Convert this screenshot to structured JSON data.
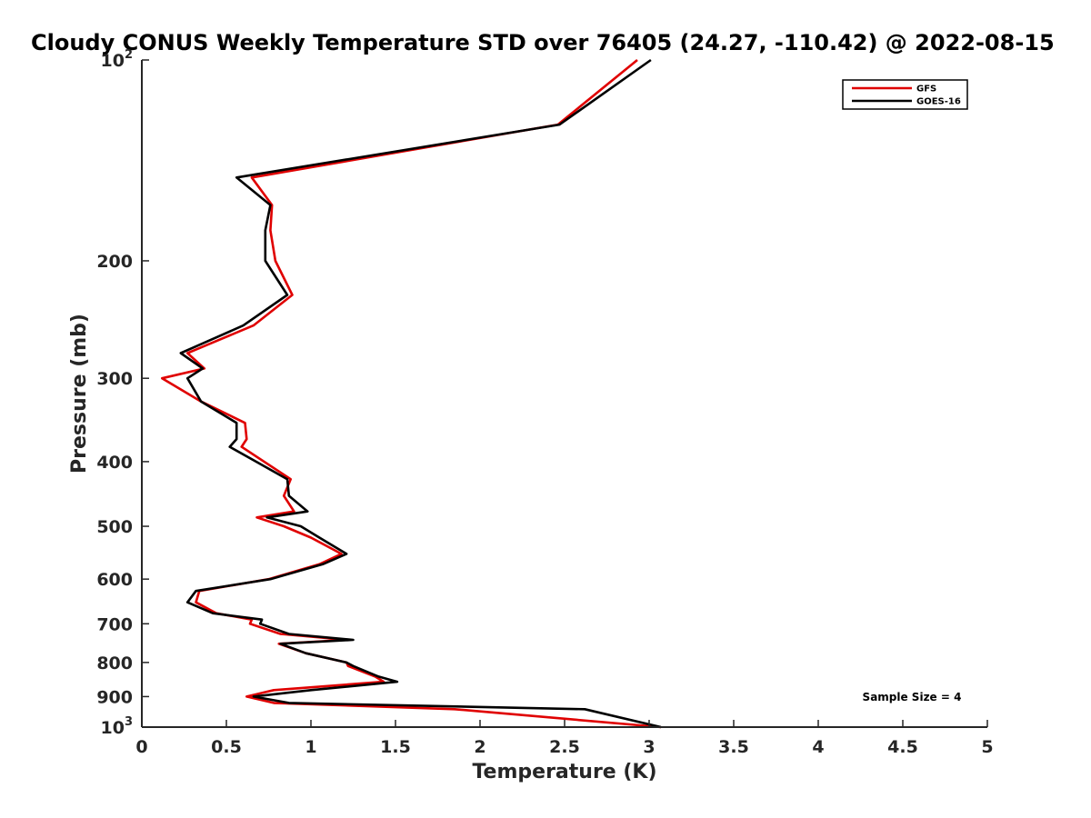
{
  "chart_data": {
    "type": "line",
    "title": "Cloudy CONUS Weekly Temperature STD over 76405 (24.27, -110.42) @ 2022-08-15",
    "xlabel": "Temperature (K)",
    "ylabel": "Pressure (mb)",
    "xlim": [
      0,
      5
    ],
    "ylim": [
      100,
      1000
    ],
    "y_scale": "log",
    "y_reversed": true,
    "grid": false,
    "legend_position": "top-right",
    "annotation": "Sample Size = 4",
    "x_ticks": [
      "0",
      "0.5",
      "1",
      "1.5",
      "2",
      "2.5",
      "3",
      "3.5",
      "4",
      "4.5",
      "5"
    ],
    "y_ticks": [
      {
        "value": 100,
        "base": "10",
        "exp": "2"
      },
      {
        "value": 200,
        "label": "200"
      },
      {
        "value": 300,
        "label": "300"
      },
      {
        "value": 400,
        "label": "400"
      },
      {
        "value": 500,
        "label": "500"
      },
      {
        "value": 600,
        "label": "600"
      },
      {
        "value": 700,
        "label": "700"
      },
      {
        "value": 800,
        "label": "800"
      },
      {
        "value": 900,
        "label": "900"
      },
      {
        "value": 1000,
        "base": "10",
        "exp": "3"
      }
    ],
    "series": [
      {
        "name": "GFS",
        "color": "#e00000",
        "points": [
          [
            2.93,
            100
          ],
          [
            2.46,
            125
          ],
          [
            0.65,
            150
          ],
          [
            0.77,
            165
          ],
          [
            0.76,
            180
          ],
          [
            0.79,
            200
          ],
          [
            0.89,
            225
          ],
          [
            0.66,
            250
          ],
          [
            0.27,
            275
          ],
          [
            0.37,
            290
          ],
          [
            0.12,
            300
          ],
          [
            0.35,
            325
          ],
          [
            0.61,
            350
          ],
          [
            0.62,
            370
          ],
          [
            0.59,
            380
          ],
          [
            0.88,
            425
          ],
          [
            0.84,
            450
          ],
          [
            0.9,
            475
          ],
          [
            0.68,
            485
          ],
          [
            0.84,
            500
          ],
          [
            1.0,
            520
          ],
          [
            1.18,
            550
          ],
          [
            1.05,
            570
          ],
          [
            0.75,
            600
          ],
          [
            0.34,
            625
          ],
          [
            0.32,
            650
          ],
          [
            0.44,
            675
          ],
          [
            0.65,
            690
          ],
          [
            0.64,
            700
          ],
          [
            0.82,
            725
          ],
          [
            1.21,
            740
          ],
          [
            0.81,
            750
          ],
          [
            0.97,
            775
          ],
          [
            1.21,
            800
          ],
          [
            1.22,
            810
          ],
          [
            1.38,
            840
          ],
          [
            1.43,
            855
          ],
          [
            0.78,
            880
          ],
          [
            0.62,
            900
          ],
          [
            0.78,
            920
          ],
          [
            1.85,
            940
          ],
          [
            3.07,
            1000
          ]
        ]
      },
      {
        "name": "GOES-16",
        "color": "#000000",
        "points": [
          [
            3.01,
            100
          ],
          [
            2.47,
            125
          ],
          [
            0.56,
            150
          ],
          [
            0.76,
            165
          ],
          [
            0.73,
            180
          ],
          [
            0.73,
            200
          ],
          [
            0.86,
            225
          ],
          [
            0.6,
            250
          ],
          [
            0.23,
            275
          ],
          [
            0.36,
            290
          ],
          [
            0.27,
            300
          ],
          [
            0.35,
            325
          ],
          [
            0.56,
            350
          ],
          [
            0.56,
            370
          ],
          [
            0.52,
            380
          ],
          [
            0.86,
            425
          ],
          [
            0.87,
            450
          ],
          [
            0.98,
            475
          ],
          [
            0.74,
            485
          ],
          [
            0.94,
            500
          ],
          [
            1.05,
            520
          ],
          [
            1.21,
            550
          ],
          [
            1.07,
            570
          ],
          [
            0.76,
            600
          ],
          [
            0.32,
            625
          ],
          [
            0.27,
            650
          ],
          [
            0.42,
            675
          ],
          [
            0.71,
            690
          ],
          [
            0.7,
            700
          ],
          [
            0.87,
            725
          ],
          [
            1.25,
            740
          ],
          [
            0.82,
            750
          ],
          [
            0.97,
            775
          ],
          [
            1.21,
            800
          ],
          [
            1.25,
            810
          ],
          [
            1.4,
            840
          ],
          [
            1.51,
            855
          ],
          [
            1.0,
            880
          ],
          [
            0.66,
            900
          ],
          [
            0.87,
            920
          ],
          [
            2.62,
            940
          ],
          [
            3.07,
            1000
          ]
        ]
      }
    ]
  }
}
